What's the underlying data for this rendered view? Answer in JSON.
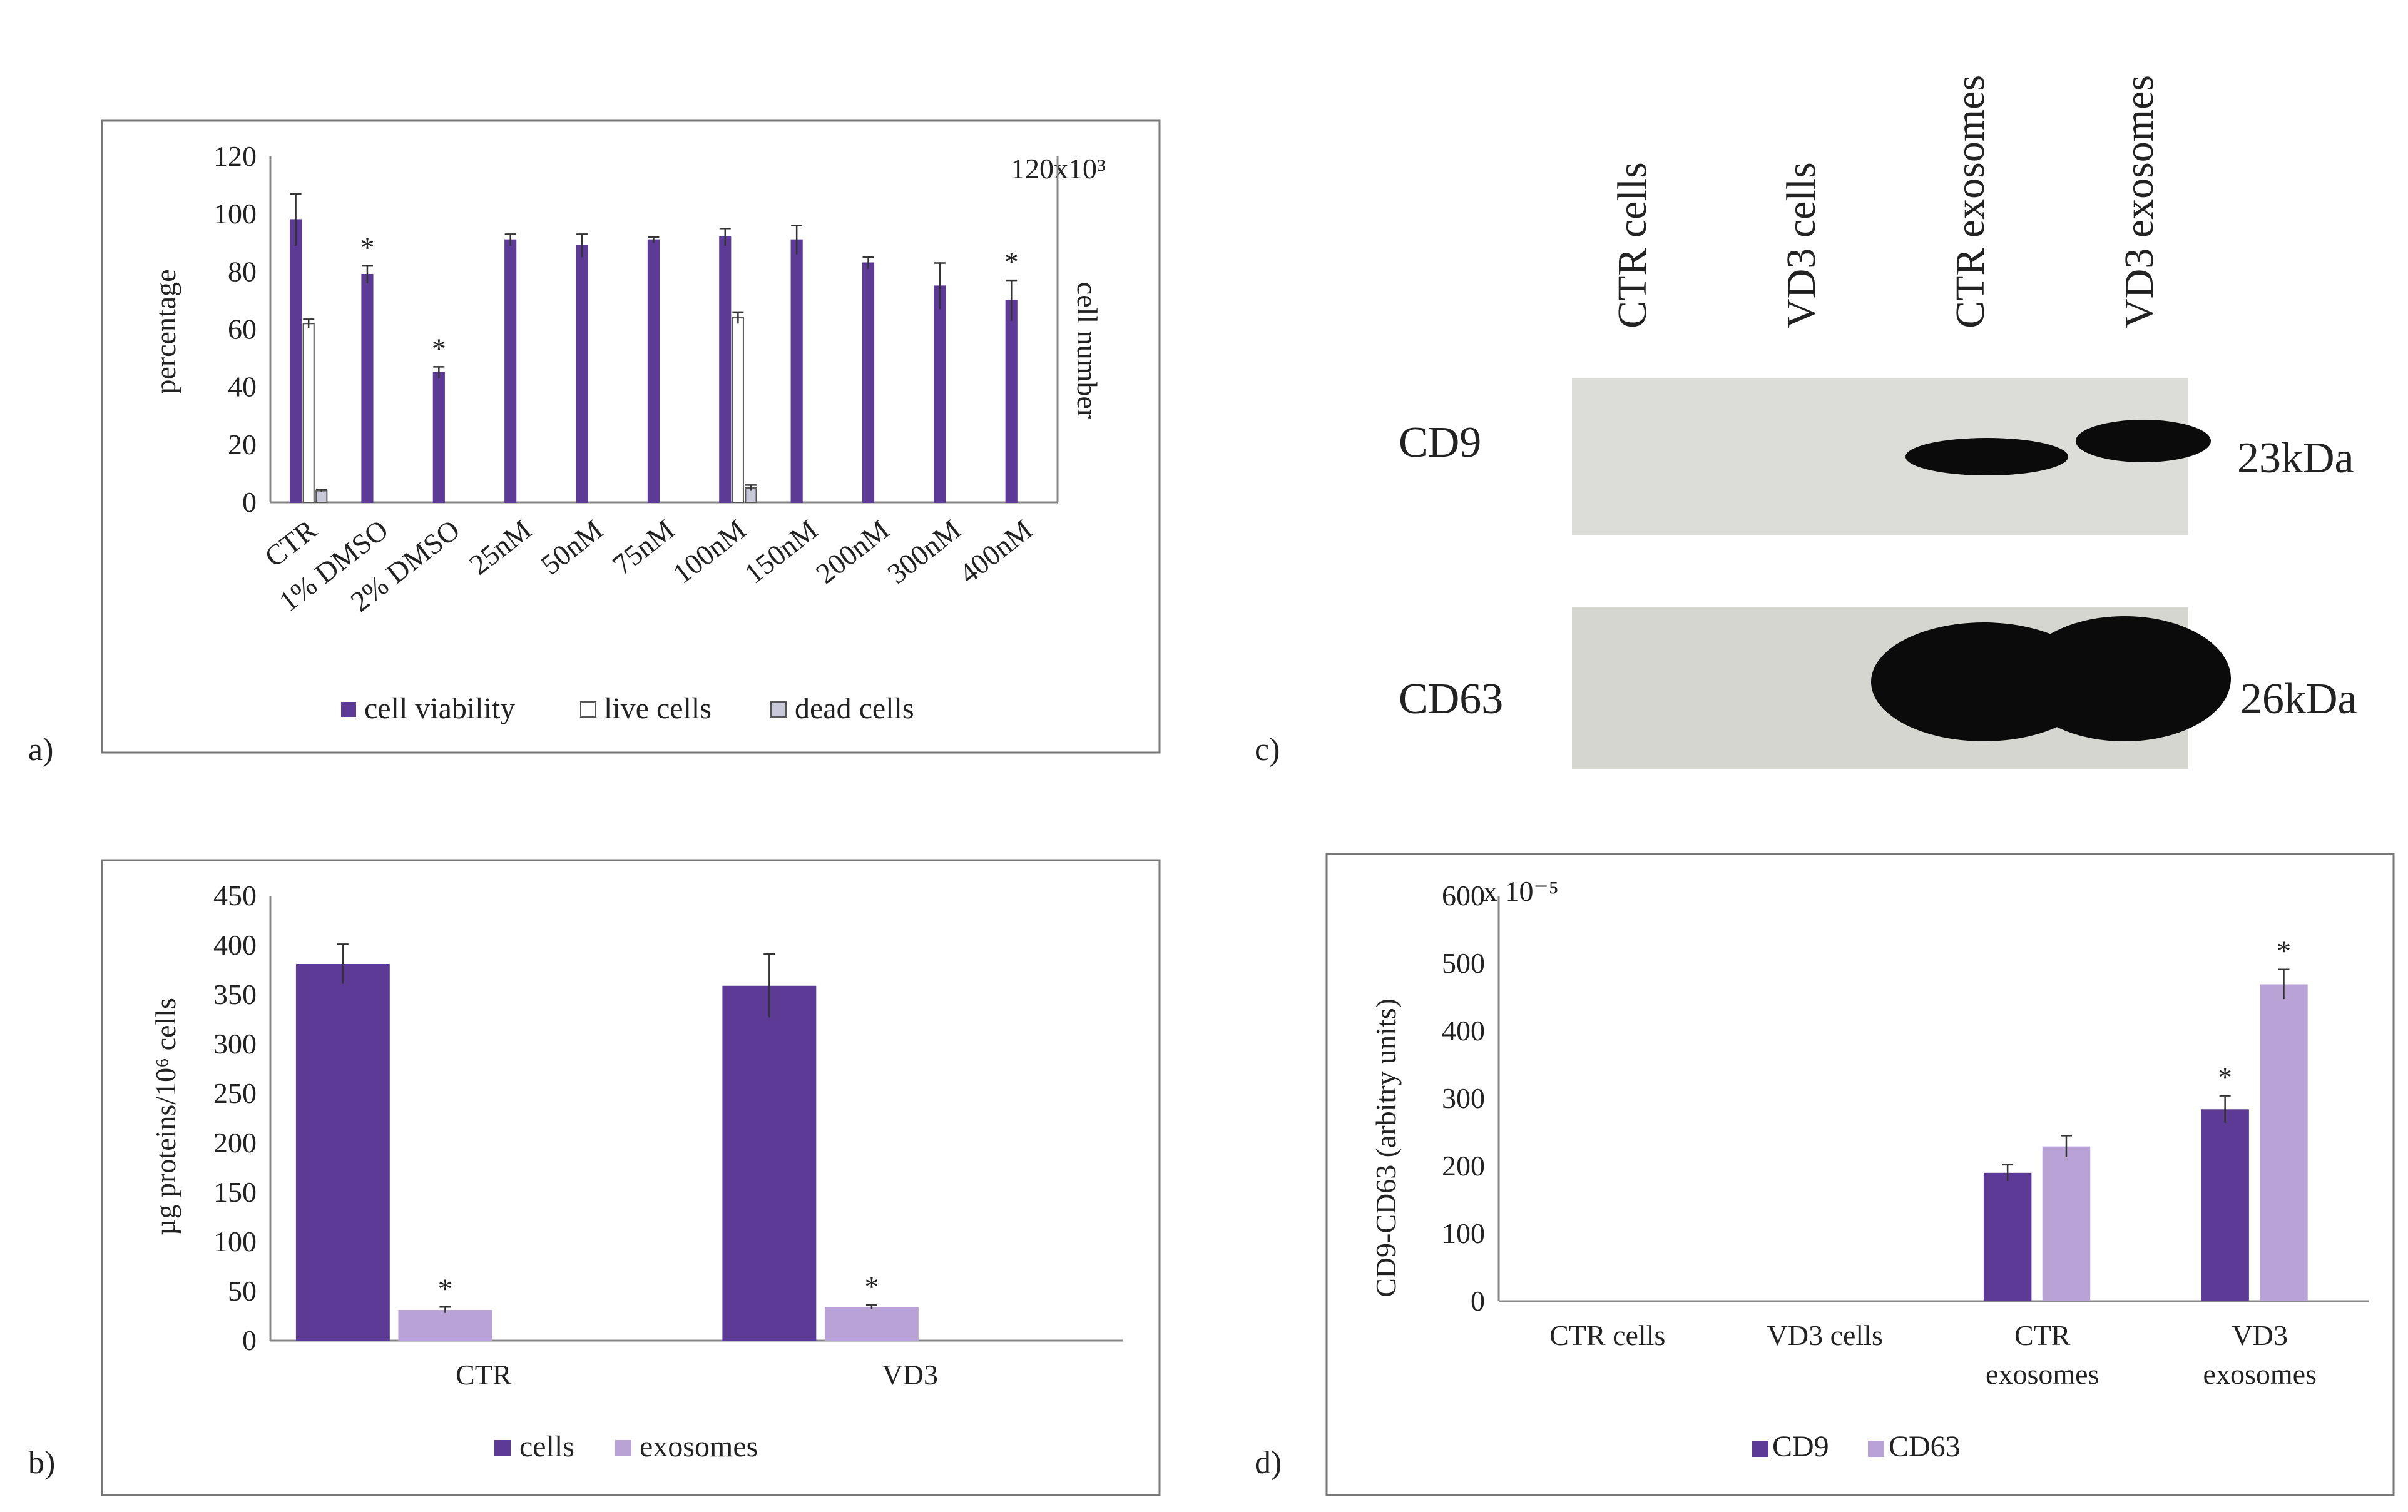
{
  "colors": {
    "dark_purple": "#5c3a95",
    "light_purple": "#b9a3d6",
    "live_fill": "#ffffff",
    "dead_fill": "#c8c8d8",
    "axis": "#888888",
    "frame": "#777777",
    "blot_bg": "#dcdcd8",
    "band": "#0b0b0b"
  },
  "chart_data": [
    {
      "id": "a",
      "panel_label": "a)",
      "type": "bar",
      "categories": [
        "CTR",
        "1% DMSO",
        "2% DMSO",
        "25nM",
        "50nM",
        "75nM",
        "100nM",
        "150nM",
        "200nM",
        "300nM",
        "400nM"
      ],
      "ylabel": "percentage",
      "ylim": [
        0,
        120
      ],
      "yticks": [
        0,
        20,
        40,
        60,
        80,
        100,
        120
      ],
      "y2label": "cell number",
      "y2_top_label": "120x10³",
      "series": [
        {
          "name": "cell viability",
          "values": [
            98,
            79,
            45,
            91,
            89,
            91,
            92,
            91,
            83,
            75,
            70
          ],
          "errors": [
            9,
            3,
            2,
            2,
            4,
            1,
            3,
            5,
            2,
            8,
            7
          ]
        },
        {
          "name": "live cells",
          "values": [
            62,
            null,
            null,
            null,
            null,
            null,
            64,
            null,
            null,
            null,
            null
          ],
          "errors": [
            1.5,
            null,
            null,
            null,
            null,
            null,
            2,
            null,
            null,
            null,
            null
          ]
        },
        {
          "name": "dead cells",
          "values": [
            4,
            null,
            null,
            null,
            null,
            null,
            5,
            null,
            null,
            null,
            null
          ],
          "errors": [
            0.5,
            null,
            null,
            null,
            null,
            null,
            1,
            null,
            null,
            null,
            null
          ]
        }
      ],
      "annotations": [
        {
          "category": "1% DMSO",
          "text": "*"
        },
        {
          "category": "2% DMSO",
          "text": "*"
        },
        {
          "category": "400nM",
          "text": "*"
        }
      ],
      "legend": [
        "cell viability",
        "live cells",
        "dead cells"
      ],
      "legend_position": "bottom"
    },
    {
      "id": "b",
      "panel_label": "b)",
      "type": "bar",
      "categories": [
        "CTR",
        "VD3"
      ],
      "ylabel": "µg proteins/10⁶ cells",
      "ylim": [
        0,
        450
      ],
      "yticks": [
        0,
        50,
        100,
        150,
        200,
        250,
        300,
        350,
        400,
        450
      ],
      "series": [
        {
          "name": "cells",
          "values": [
            381,
            359
          ],
          "errors": [
            20,
            32
          ]
        },
        {
          "name": "exosomes",
          "values": [
            31,
            34
          ],
          "errors": [
            3,
            2
          ]
        }
      ],
      "annotations": [
        {
          "category": "CTR",
          "series": "exosomes",
          "text": "*"
        },
        {
          "category": "VD3",
          "series": "exosomes",
          "text": "*"
        }
      ],
      "legend": [
        "cells",
        "exosomes"
      ],
      "legend_position": "bottom"
    },
    {
      "id": "d",
      "panel_label": "d)",
      "type": "bar",
      "categories": [
        "CTR cells",
        "VD3 cells",
        "CTR exosomes",
        "VD3 exosomes"
      ],
      "category_lines": [
        [
          "CTR cells"
        ],
        [
          "VD3 cells"
        ],
        [
          "CTR",
          "exosomes"
        ],
        [
          "VD3",
          "exosomes"
        ]
      ],
      "ylabel": "CD9-CD63 (arbitry units)",
      "ylim": [
        0,
        600
      ],
      "yticks": [
        0,
        100,
        200,
        300,
        400,
        500,
        600
      ],
      "y_exponent_label": "x 10⁻⁵",
      "series": [
        {
          "name": "CD9",
          "values": [
            0,
            0,
            190,
            284
          ],
          "errors": [
            0,
            0,
            12,
            20
          ]
        },
        {
          "name": "CD63",
          "values": [
            0,
            0,
            229,
            469
          ],
          "errors": [
            0,
            0,
            16,
            22
          ]
        }
      ],
      "annotations": [
        {
          "category": "VD3 exosomes",
          "series": "CD9",
          "text": "*"
        },
        {
          "category": "VD3 exosomes",
          "series": "CD63",
          "text": "*"
        }
      ],
      "legend": [
        "CD9",
        "CD63"
      ],
      "legend_position": "bottom"
    }
  ],
  "blot": {
    "panel_label": "c)",
    "lanes": [
      "CTR cells",
      "VD3 cells",
      "CTR  exosomes",
      "VD3 exosomes"
    ],
    "rows": [
      {
        "protein": "CD9",
        "mw": "23kDa",
        "bands": [
          0,
          0,
          1,
          1
        ]
      },
      {
        "protein": "CD63",
        "mw": "26kDa",
        "bands": [
          0,
          0,
          1,
          1
        ]
      }
    ]
  }
}
